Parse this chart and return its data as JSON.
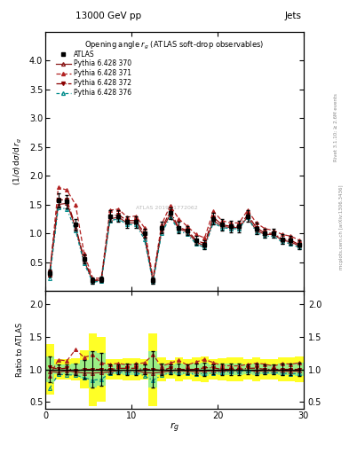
{
  "x_data": [
    0.5,
    1.5,
    2.5,
    3.5,
    4.5,
    5.5,
    6.5,
    7.5,
    8.5,
    9.5,
    10.5,
    11.5,
    12.5,
    13.5,
    14.5,
    15.5,
    16.5,
    17.5,
    18.5,
    19.5,
    20.5,
    21.5,
    22.5,
    23.5,
    24.5,
    25.5,
    26.5,
    27.5,
    28.5,
    29.5
  ],
  "atlas_y": [
    0.31,
    1.57,
    1.55,
    1.15,
    0.55,
    0.18,
    0.2,
    1.3,
    1.3,
    1.2,
    1.2,
    1.0,
    0.18,
    1.1,
    1.35,
    1.1,
    1.05,
    0.88,
    0.8,
    1.25,
    1.15,
    1.12,
    1.12,
    1.3,
    1.08,
    1.0,
    1.0,
    0.9,
    0.88,
    0.8
  ],
  "atlas_yerr": [
    0.06,
    0.12,
    0.12,
    0.1,
    0.08,
    0.05,
    0.05,
    0.1,
    0.1,
    0.1,
    0.1,
    0.08,
    0.05,
    0.1,
    0.1,
    0.1,
    0.08,
    0.08,
    0.08,
    0.1,
    0.1,
    0.1,
    0.1,
    0.1,
    0.1,
    0.08,
    0.08,
    0.08,
    0.08,
    0.08
  ],
  "py370_y": [
    0.3,
    1.5,
    1.52,
    1.1,
    0.52,
    0.17,
    0.19,
    1.25,
    1.28,
    1.18,
    1.18,
    0.95,
    0.17,
    1.05,
    1.32,
    1.08,
    1.02,
    0.85,
    0.78,
    1.22,
    1.12,
    1.1,
    1.1,
    1.28,
    1.05,
    0.98,
    0.98,
    0.88,
    0.85,
    0.78
  ],
  "py371_y": [
    0.28,
    1.8,
    1.75,
    1.5,
    0.65,
    0.22,
    0.22,
    1.4,
    1.42,
    1.28,
    1.3,
    1.1,
    0.22,
    1.15,
    1.48,
    1.25,
    1.12,
    0.98,
    0.92,
    1.38,
    1.22,
    1.18,
    1.18,
    1.4,
    1.18,
    1.08,
    1.05,
    0.98,
    0.95,
    0.88
  ],
  "py372_y": [
    0.32,
    1.58,
    1.58,
    1.12,
    0.55,
    0.18,
    0.2,
    1.3,
    1.32,
    1.22,
    1.22,
    1.0,
    0.18,
    1.08,
    1.38,
    1.1,
    1.05,
    0.88,
    0.82,
    1.28,
    1.15,
    1.12,
    1.12,
    1.32,
    1.1,
    1.0,
    1.0,
    0.9,
    0.88,
    0.8
  ],
  "py376_y": [
    0.22,
    1.45,
    1.42,
    1.05,
    0.48,
    0.15,
    0.17,
    1.22,
    1.25,
    1.15,
    1.15,
    0.9,
    0.15,
    1.0,
    1.28,
    1.05,
    0.98,
    0.82,
    0.75,
    1.18,
    1.1,
    1.08,
    1.08,
    1.28,
    1.02,
    0.95,
    0.95,
    0.85,
    0.82,
    0.75
  ],
  "color_370": "#8B1A1A",
  "color_371": "#B22222",
  "color_372": "#8B0000",
  "color_376": "#008B8B",
  "xlim": [
    0,
    30
  ],
  "ylim_main": [
    0,
    4.5
  ],
  "ylim_ratio": [
    0.4,
    2.2
  ],
  "yticks_main": [
    0.5,
    1.0,
    1.5,
    2.0,
    2.5,
    3.0,
    3.5,
    4.0
  ],
  "yticks_ratio": [
    0.5,
    1.0,
    1.5,
    2.0
  ],
  "xticks": [
    0,
    10,
    20,
    30
  ]
}
